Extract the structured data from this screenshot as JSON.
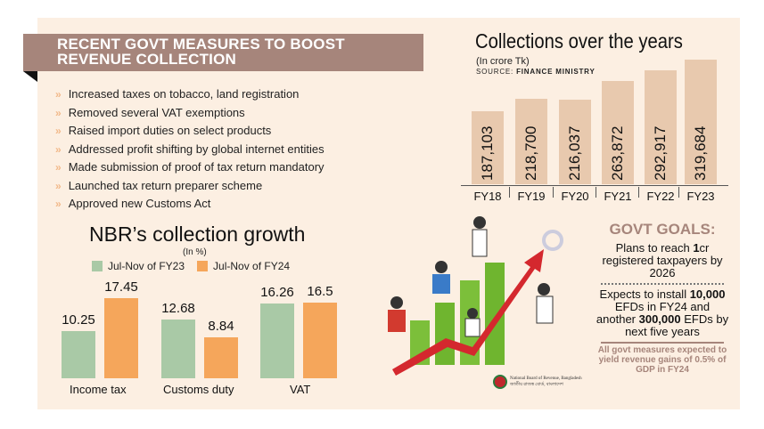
{
  "measures": {
    "title_line1": "RECENT GOVT MEASURES TO BOOST",
    "title_line2": "REVENUE COLLECTION",
    "bullet_icon": "double-chevron-right-icon",
    "items": [
      "Increased taxes on tobacco, land registration",
      "Removed several VAT exemptions",
      "Raised import duties on select products",
      "Addressed profit shifting by global internet entities",
      "Made submission of proof of tax return mandatory",
      "Launched tax return preparer scheme",
      "Approved new Customs Act"
    ]
  },
  "colors": {
    "panel": "#fcefe2",
    "header": "#a6857b",
    "collections_bar": "#e8c9ae",
    "fy23": "#a9c9a6",
    "fy24": "#f5a65b"
  },
  "chart_data": [
    {
      "type": "bar",
      "title": "Collections over the years",
      "subtitle": "(In crore Tk)",
      "source_label": "SOURCE:",
      "source": "FINANCE MINISTRY",
      "categories": [
        "FY18",
        "FY19",
        "FY20",
        "FY21",
        "FY22",
        "FY23"
      ],
      "values": [
        187103,
        218700,
        216037,
        263872,
        292917,
        319684
      ],
      "labels": [
        "187,103",
        "218,700",
        "216,037",
        "263,872",
        "292,917",
        "319,684"
      ],
      "ylim": [
        0,
        319684
      ],
      "grid": false
    },
    {
      "type": "bar",
      "title": "NBR’s collection growth",
      "subtitle": "(In %)",
      "categories": [
        "Income tax",
        "Customs  duty",
        "VAT"
      ],
      "series": [
        {
          "name": "Jul-Nov of FY23",
          "values": [
            10.25,
            12.68,
            16.26
          ],
          "labels": [
            "10.25",
            "12.68",
            "16.26"
          ]
        },
        {
          "name": "Jul-Nov of FY24",
          "values": [
            17.45,
            8.84,
            16.5
          ],
          "labels": [
            "17.45",
            "8.84",
            "16.5"
          ]
        }
      ],
      "legend": "top",
      "grid": false
    }
  ],
  "goals": {
    "title": "GOVT GOALS:",
    "goal1_pre": "Plans to reach ",
    "goal1_bold": "1",
    "goal1_post": "cr registered taxpayers by 2026",
    "goal2_pre": "Expects to install ",
    "goal2_bold1": "10,000",
    "goal2_mid": " EFDs in FY24 and another ",
    "goal2_bold2": "300,000",
    "goal2_post": " EFDs by next five years",
    "note": "All govt measures expected to yield revenue gains of 0.5% of GDP in FY24"
  },
  "logo": {
    "line1": "National Board of Revenue, Bangladesh",
    "line2": "জাতীয় রাজস্ব বোর্ড, বাংলাদেশ"
  }
}
